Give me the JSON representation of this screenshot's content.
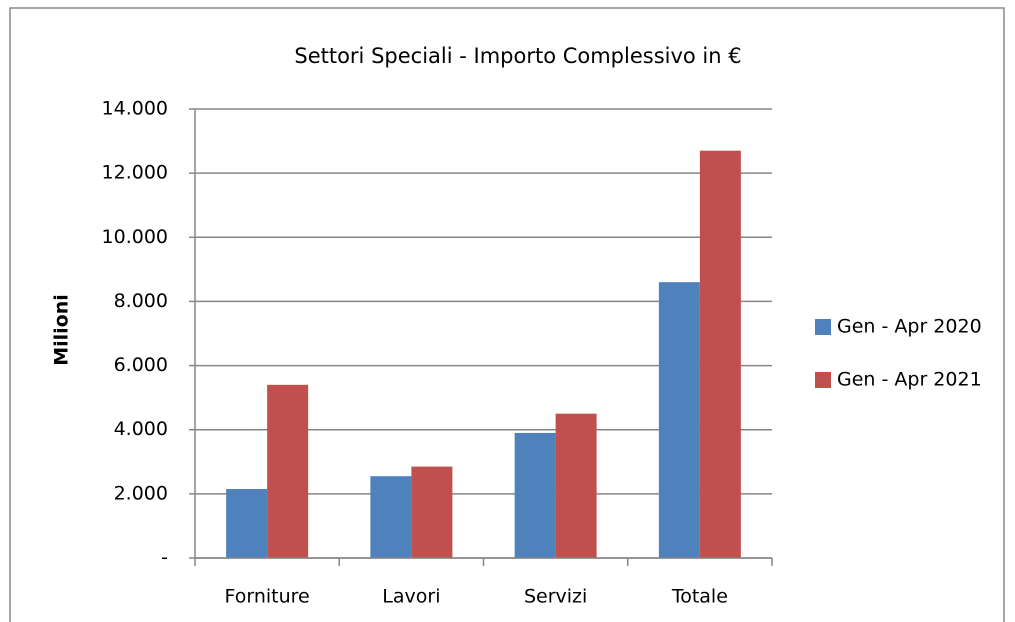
{
  "chart_data": {
    "type": "bar",
    "title": "Settori Speciali - Importo Complessivo in €",
    "y_label": "Milioni",
    "categories": [
      "Forniture",
      "Lavori",
      "Servizi",
      "Totale"
    ],
    "series": [
      {
        "name": "Gen - Apr 2020",
        "color": "#4f81bd",
        "values": [
          2150,
          2550,
          3900,
          8600
        ]
      },
      {
        "name": "Gen - Apr 2021",
        "color": "#c0504d",
        "values": [
          5400,
          2850,
          4500,
          12700
        ]
      }
    ],
    "ylim": [
      0,
      14000
    ],
    "yticks": [
      {
        "value": 0,
        "label": "-"
      },
      {
        "value": 2000,
        "label": "2.000"
      },
      {
        "value": 4000,
        "label": "4.000"
      },
      {
        "value": 6000,
        "label": "6.000"
      },
      {
        "value": 8000,
        "label": "8.000"
      },
      {
        "value": 10000,
        "label": "10.000"
      },
      {
        "value": 12000,
        "label": "12.000"
      },
      {
        "value": 14000,
        "label": "14.000"
      }
    ],
    "grid": true,
    "legend": "right"
  }
}
